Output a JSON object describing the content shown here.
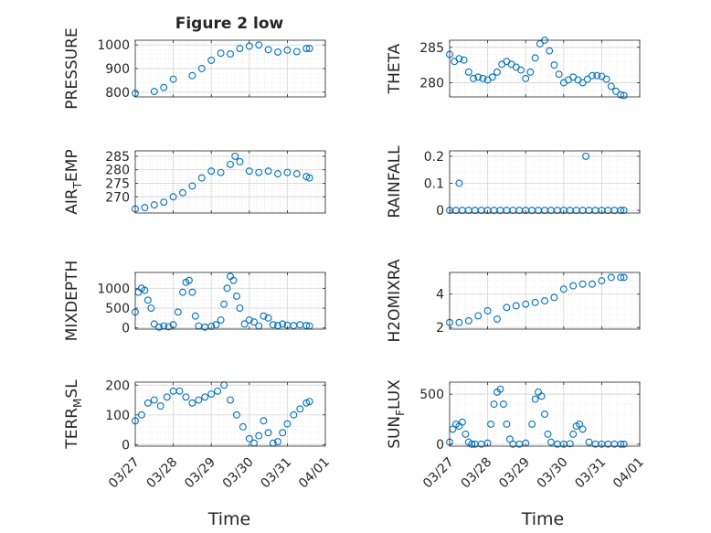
{
  "figure_title": "Figure 2 low",
  "colors": {
    "marker": "#0072bd",
    "axis": "#262626",
    "grid": "#d9d9d9"
  },
  "x_ticks": [
    "03/27",
    "03/28",
    "03/29",
    "03/30",
    "03/31",
    "04/01"
  ],
  "x_label": "Time",
  "chart_data": [
    {
      "id": "pressure",
      "type": "scatter",
      "title": "Figure 2 low",
      "ylabel": "PRESSURE",
      "ylabel_parts": [
        "PRESSURE"
      ],
      "xlim": [
        "03/27",
        "04/01"
      ],
      "ylim": [
        780,
        1020
      ],
      "yticks": [
        800,
        900,
        1000
      ],
      "grid": true,
      "minor_grid": true,
      "show_x_ticklabels": false,
      "series": [
        {
          "x": [
            "03/27 00:00",
            "03/27 12:00",
            "03/27 18:00",
            "03/28 00:00",
            "03/28 12:00",
            "03/28 18:00",
            "03/29 00:00",
            "03/29 06:00",
            "03/29 12:00",
            "03/29 18:00",
            "03/30 00:00",
            "03/30 06:00",
            "03/30 12:00",
            "03/30 18:00",
            "03/31 00:00",
            "03/31 06:00",
            "03/31 12:00",
            "03/31 14:00"
          ],
          "y": [
            795,
            803,
            820,
            855,
            870,
            900,
            935,
            965,
            962,
            985,
            995,
            1000,
            980,
            970,
            978,
            972,
            985,
            985
          ]
        }
      ]
    },
    {
      "id": "theta",
      "type": "scatter",
      "title": "",
      "ylabel": "THETA",
      "ylabel_parts": [
        "THETA"
      ],
      "xlim": [
        "03/27",
        "04/01"
      ],
      "ylim": [
        278,
        286
      ],
      "yticks": [
        280,
        285
      ],
      "grid": true,
      "minor_grid": true,
      "show_x_ticklabels": false,
      "series": [
        {
          "x": [
            "03/27 00:00",
            "03/27 03:00",
            "03/27 06:00",
            "03/27 09:00",
            "03/27 12:00",
            "03/27 15:00",
            "03/27 18:00",
            "03/27 21:00",
            "03/28 00:00",
            "03/28 03:00",
            "03/28 06:00",
            "03/28 09:00",
            "03/28 12:00",
            "03/28 15:00",
            "03/28 18:00",
            "03/28 21:00",
            "03/29 00:00",
            "03/29 03:00",
            "03/29 06:00",
            "03/29 09:00",
            "03/29 12:00",
            "03/29 15:00",
            "03/29 18:00",
            "03/29 21:00",
            "03/30 00:00",
            "03/30 03:00",
            "03/30 06:00",
            "03/30 09:00",
            "03/30 12:00",
            "03/30 15:00",
            "03/30 18:00",
            "03/30 21:00",
            "03/31 00:00",
            "03/31 03:00",
            "03/31 06:00",
            "03/31 09:00",
            "03/31 12:00",
            "03/31 14:00"
          ],
          "y": [
            284,
            283,
            283.4,
            283.2,
            281.5,
            280.6,
            280.8,
            280.6,
            280.4,
            280.8,
            281.5,
            282.6,
            283,
            282.6,
            282.2,
            281.8,
            280.6,
            281.5,
            283.5,
            285.5,
            286,
            284.5,
            282.5,
            281.2,
            280,
            280.4,
            280.8,
            280.4,
            280,
            280.5,
            281,
            281,
            280.9,
            280.5,
            279.5,
            278.8,
            278.3,
            278.2
          ]
        }
      ]
    },
    {
      "id": "air_temp",
      "type": "scatter",
      "title": "",
      "ylabel": "AIR_TEMP",
      "ylabel_parts": [
        "AIR",
        "T",
        "EMP"
      ],
      "xlim": [
        "03/27",
        "04/01"
      ],
      "ylim": [
        264,
        287
      ],
      "yticks": [
        270,
        275,
        280,
        285
      ],
      "grid": true,
      "minor_grid": true,
      "show_x_ticklabels": false,
      "series": [
        {
          "x": [
            "03/27 00:00",
            "03/27 06:00",
            "03/27 12:00",
            "03/27 18:00",
            "03/28 00:00",
            "03/28 06:00",
            "03/28 12:00",
            "03/28 18:00",
            "03/29 00:00",
            "03/29 06:00",
            "03/29 12:00",
            "03/29 15:00",
            "03/29 18:00",
            "03/30 00:00",
            "03/30 06:00",
            "03/30 12:00",
            "03/30 18:00",
            "03/31 00:00",
            "03/31 06:00",
            "03/31 12:00",
            "03/31 14:00"
          ],
          "y": [
            265.5,
            266,
            267,
            268,
            270,
            271.5,
            274,
            277,
            279.5,
            279,
            282,
            285,
            283,
            279.5,
            279,
            279.5,
            278.5,
            279,
            278.5,
            277.5,
            277
          ]
        }
      ]
    },
    {
      "id": "rainfall",
      "type": "scatter",
      "title": "",
      "ylabel": "RAINFALL",
      "ylabel_parts": [
        "RAINFALL"
      ],
      "xlim": [
        "03/27",
        "04/01"
      ],
      "ylim": [
        -0.01,
        0.22
      ],
      "yticks": [
        0,
        0.1,
        0.2
      ],
      "grid": true,
      "minor_grid": true,
      "show_x_ticklabels": false,
      "series": [
        {
          "x": [
            "03/27 00:00",
            "03/27 04:00",
            "03/27 08:00",
            "03/27 12:00",
            "03/27 16:00",
            "03/27 20:00",
            "03/28 00:00",
            "03/28 04:00",
            "03/28 08:00",
            "03/28 12:00",
            "03/28 16:00",
            "03/28 20:00",
            "03/29 00:00",
            "03/29 04:00",
            "03/29 08:00",
            "03/29 12:00",
            "03/29 16:00",
            "03/29 20:00",
            "03/30 00:00",
            "03/30 04:00",
            "03/30 08:00",
            "03/30 12:00",
            "03/30 14:00",
            "03/30 16:00",
            "03/30 20:00",
            "03/31 00:00",
            "03/31 04:00",
            "03/31 08:00",
            "03/31 12:00",
            "03/31 14:00",
            "03/27 06:00"
          ],
          "y": [
            0,
            0,
            0,
            0,
            0,
            0,
            0,
            0,
            0,
            0,
            0,
            0,
            0,
            0,
            0,
            0,
            0,
            0,
            0,
            0,
            0,
            0,
            0.2,
            0,
            0,
            0,
            0,
            0,
            0,
            0,
            0.1
          ]
        }
      ]
    },
    {
      "id": "mixdepth",
      "type": "scatter",
      "title": "",
      "ylabel": "MIXDEPTH",
      "ylabel_parts": [
        "MIXDEPTH"
      ],
      "xlim": [
        "03/27",
        "04/01"
      ],
      "ylim": [
        -30,
        1400
      ],
      "yticks": [
        0,
        500,
        1000
      ],
      "grid": true,
      "minor_grid": true,
      "show_x_ticklabels": false,
      "series": [
        {
          "x": [
            "03/27 00:00",
            "03/27 02:00",
            "03/27 04:00",
            "03/27 06:00",
            "03/27 08:00",
            "03/27 10:00",
            "03/27 12:00",
            "03/27 15:00",
            "03/27 18:00",
            "03/27 21:00",
            "03/28 00:00",
            "03/28 03:00",
            "03/28 06:00",
            "03/28 08:00",
            "03/28 10:00",
            "03/28 12:00",
            "03/28 14:00",
            "03/28 16:00",
            "03/28 20:00",
            "03/29 00:00",
            "03/29 03:00",
            "03/29 06:00",
            "03/29 08:00",
            "03/29 10:00",
            "03/29 12:00",
            "03/29 14:00",
            "03/29 16:00",
            "03/29 18:00",
            "03/29 21:00",
            "03/30 00:00",
            "03/30 03:00",
            "03/30 06:00",
            "03/30 09:00",
            "03/30 12:00",
            "03/30 15:00",
            "03/30 18:00",
            "03/30 21:00",
            "03/31 00:00",
            "03/31 04:00",
            "03/31 08:00",
            "03/31 12:00",
            "03/31 14:00"
          ],
          "y": [
            400,
            900,
            1000,
            950,
            700,
            500,
            100,
            20,
            50,
            30,
            80,
            400,
            900,
            1150,
            1200,
            900,
            300,
            50,
            20,
            40,
            80,
            200,
            600,
            1000,
            1300,
            1200,
            800,
            500,
            100,
            200,
            150,
            50,
            300,
            250,
            80,
            60,
            100,
            70,
            60,
            80,
            60,
            50
          ]
        }
      ]
    },
    {
      "id": "h2omixra",
      "type": "scatter",
      "title": "",
      "ylabel": "H2OMIXRA",
      "ylabel_parts": [
        "H2OMIXRA"
      ],
      "xlim": [
        "03/27",
        "04/01"
      ],
      "ylim": [
        1.9,
        5.3
      ],
      "yticks": [
        2,
        4
      ],
      "grid": true,
      "minor_grid": true,
      "show_x_ticklabels": false,
      "series": [
        {
          "x": [
            "03/27 00:00",
            "03/27 06:00",
            "03/27 12:00",
            "03/27 18:00",
            "03/28 00:00",
            "03/28 06:00",
            "03/28 12:00",
            "03/28 18:00",
            "03/29 00:00",
            "03/29 06:00",
            "03/29 12:00",
            "03/29 18:00",
            "03/30 00:00",
            "03/30 06:00",
            "03/30 12:00",
            "03/30 18:00",
            "03/31 00:00",
            "03/31 06:00",
            "03/31 12:00",
            "03/31 14:00"
          ],
          "y": [
            2.3,
            2.3,
            2.4,
            2.7,
            3.0,
            2.5,
            3.2,
            3.3,
            3.4,
            3.5,
            3.6,
            3.8,
            4.3,
            4.5,
            4.6,
            4.6,
            4.8,
            5.0,
            5.0,
            5.0
          ]
        }
      ]
    },
    {
      "id": "terr_msl",
      "type": "scatter",
      "title": "",
      "ylabel": "TERR_MSL",
      "ylabel_parts": [
        "TERR",
        "M",
        "SL"
      ],
      "xlim": [
        "03/27",
        "04/01"
      ],
      "ylim": [
        -5,
        210
      ],
      "yticks": [
        0,
        100,
        200
      ],
      "grid": true,
      "minor_grid": true,
      "show_x_ticklabels": true,
      "series": [
        {
          "x": [
            "03/27 00:00",
            "03/27 04:00",
            "03/27 08:00",
            "03/27 12:00",
            "03/27 16:00",
            "03/27 20:00",
            "03/28 00:00",
            "03/28 04:00",
            "03/28 08:00",
            "03/28 12:00",
            "03/28 16:00",
            "03/28 20:00",
            "03/29 00:00",
            "03/29 04:00",
            "03/29 08:00",
            "03/29 12:00",
            "03/29 16:00",
            "03/29 20:00",
            "03/30 00:00",
            "03/30 03:00",
            "03/30 06:00",
            "03/30 09:00",
            "03/30 12:00",
            "03/30 15:00",
            "03/30 18:00",
            "03/30 21:00",
            "03/31 00:00",
            "03/31 04:00",
            "03/31 08:00",
            "03/31 12:00",
            "03/31 14:00"
          ],
          "y": [
            80,
            100,
            140,
            150,
            130,
            160,
            180,
            180,
            160,
            140,
            150,
            160,
            170,
            180,
            200,
            150,
            100,
            60,
            20,
            5,
            30,
            80,
            40,
            5,
            10,
            40,
            70,
            100,
            120,
            140,
            145
          ]
        }
      ]
    },
    {
      "id": "sun_flux",
      "type": "scatter",
      "title": "",
      "ylabel": "SUN_FLUX",
      "ylabel_parts": [
        "SUN",
        "F",
        "LUX"
      ],
      "xlim": [
        "03/27",
        "04/01"
      ],
      "ylim": [
        -20,
        620
      ],
      "yticks": [
        0,
        500
      ],
      "grid": true,
      "minor_grid": true,
      "show_x_ticklabels": true,
      "series": [
        {
          "x": [
            "03/27 00:00",
            "03/27 02:00",
            "03/27 04:00",
            "03/27 06:00",
            "03/27 08:00",
            "03/27 10:00",
            "03/27 12:00",
            "03/27 14:00",
            "03/27 16:00",
            "03/27 20:00",
            "03/28 00:00",
            "03/28 02:00",
            "03/28 04:00",
            "03/28 06:00",
            "03/28 08:00",
            "03/28 10:00",
            "03/28 12:00",
            "03/28 14:00",
            "03/28 16:00",
            "03/28 20:00",
            "03/29 00:00",
            "03/29 04:00",
            "03/29 06:00",
            "03/29 08:00",
            "03/29 10:00",
            "03/29 12:00",
            "03/29 14:00",
            "03/29 16:00",
            "03/29 20:00",
            "03/30 00:00",
            "03/30 04:00",
            "03/30 06:00",
            "03/30 08:00",
            "03/30 10:00",
            "03/30 12:00",
            "03/30 16:00",
            "03/30 20:00",
            "03/31 00:00",
            "03/31 04:00",
            "03/31 08:00",
            "03/31 12:00",
            "03/31 14:00"
          ],
          "y": [
            20,
            150,
            200,
            180,
            220,
            100,
            20,
            0,
            0,
            0,
            10,
            200,
            400,
            520,
            550,
            400,
            200,
            50,
            0,
            0,
            10,
            200,
            450,
            520,
            480,
            300,
            100,
            20,
            0,
            0,
            5,
            100,
            180,
            200,
            150,
            20,
            0,
            0,
            0,
            0,
            0,
            0
          ]
        }
      ]
    }
  ]
}
